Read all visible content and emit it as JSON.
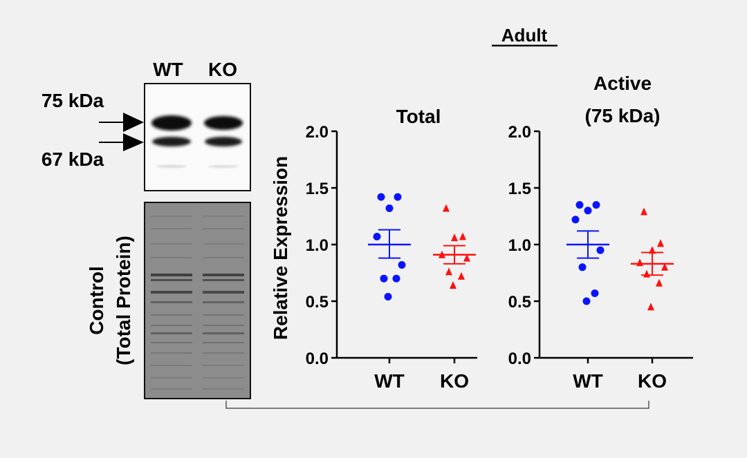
{
  "figure_title": "Adult",
  "blot": {
    "lane_labels": [
      "WT",
      "KO"
    ],
    "marker_upper": "75 kDa",
    "marker_lower": "67 kDa",
    "control_label_line1": "Control",
    "control_label_line2": "(Total Protein)"
  },
  "colors": {
    "wt": "#0a14ff",
    "ko": "#ff1010",
    "background": "#f1f1f1"
  },
  "chart_data": [
    {
      "type": "scatter",
      "title": "Total",
      "title_line2": "",
      "ylabel": "Relative Expression",
      "ylim": [
        0,
        2
      ],
      "yticks": [
        "0.0",
        "0.5",
        "1.0",
        "1.5",
        "2.0"
      ],
      "categories": [
        "WT",
        "KO"
      ],
      "series": [
        {
          "name": "WT",
          "marker": "circle",
          "values": [
            1.42,
            1.42,
            1.32,
            1.07,
            0.82,
            0.7,
            0.7,
            0.54
          ],
          "mean": 1.0,
          "sem_low": 0.88,
          "sem_high": 1.13
        },
        {
          "name": "KO",
          "marker": "triangle",
          "values": [
            1.32,
            1.07,
            1.06,
            0.91,
            0.88,
            0.76,
            0.72,
            0.64
          ],
          "mean": 0.91,
          "sem_low": 0.83,
          "sem_high": 0.99
        }
      ]
    },
    {
      "type": "scatter",
      "title": "Active",
      "title_line2": "(75 kDa)",
      "ylabel": "",
      "ylim": [
        0,
        2
      ],
      "yticks": [
        "0.0",
        "0.5",
        "1.0",
        "1.5",
        "2.0"
      ],
      "categories": [
        "WT",
        "KO"
      ],
      "series": [
        {
          "name": "WT",
          "marker": "circle",
          "values": [
            1.35,
            1.35,
            1.3,
            1.22,
            0.95,
            0.8,
            0.57,
            0.5
          ],
          "mean": 1.0,
          "sem_low": 0.88,
          "sem_high": 1.12
        },
        {
          "name": "KO",
          "marker": "triangle",
          "values": [
            1.29,
            1.01,
            0.95,
            0.84,
            0.8,
            0.74,
            0.66,
            0.45
          ],
          "mean": 0.83,
          "sem_low": 0.73,
          "sem_high": 0.93
        }
      ]
    }
  ]
}
